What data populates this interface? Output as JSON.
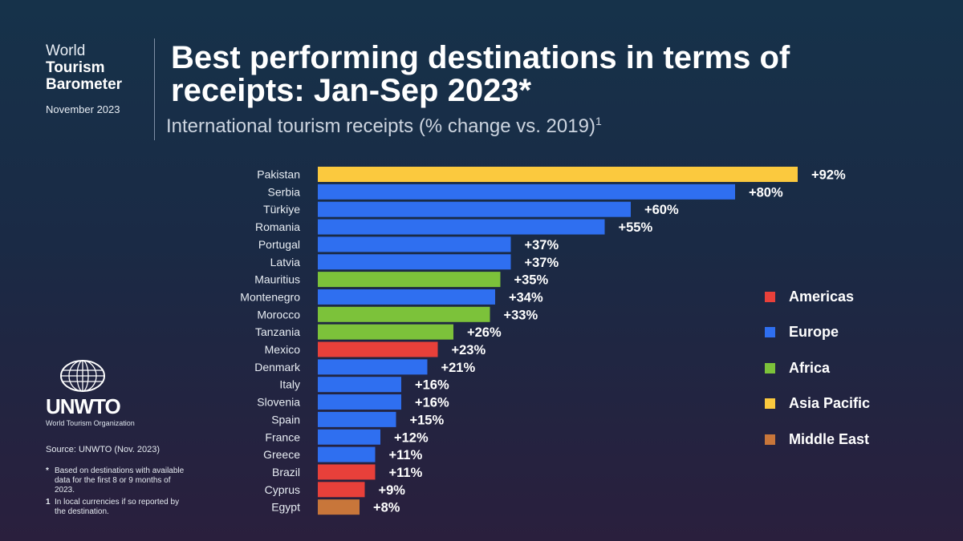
{
  "brand": {
    "line1": "World",
    "line2": "Tourism",
    "line3": "Barometer",
    "date": "November 2023"
  },
  "header": {
    "title": "Best performing destinations in terms of receipts: Jan-Sep 2023*",
    "subtitle": "International tourism receipts (% change vs. 2019)",
    "subtitle_mark": "1"
  },
  "logo": {
    "name": "UNWTO",
    "org": "World Tourism Organization"
  },
  "footer": {
    "source": "Source: UNWTO (Nov. 2023)",
    "note1_mark": "*",
    "note1": "Based on destinations with available data for the first 8 or 9 months of 2023.",
    "note2_mark": "1",
    "note2": "In local currencies if so reported by the destination."
  },
  "legend": [
    {
      "label": "Americas",
      "color": "#e8403a"
    },
    {
      "label": "Europe",
      "color": "#2f6ff0"
    },
    {
      "label": "Africa",
      "color": "#7cc23a"
    },
    {
      "label": "Asia Pacific",
      "color": "#fbc93e"
    },
    {
      "label": "Middle East",
      "color": "#c8763a"
    }
  ],
  "chart_data": {
    "type": "bar",
    "orientation": "horizontal",
    "title": "Best performing destinations in terms of receipts: Jan-Sep 2023*",
    "subtitle": "International tourism receipts (% change vs. 2019)",
    "categories": [
      "Pakistan",
      "Serbia",
      "Türkiye",
      "Romania",
      "Portugal",
      "Latvia",
      "Mauritius",
      "Montenegro",
      "Morocco",
      "Tanzania",
      "Mexico",
      "Denmark",
      "Italy",
      "Slovenia",
      "Spain",
      "France",
      "Greece",
      "Brazil",
      "Cyprus",
      "Egypt"
    ],
    "values": [
      92,
      80,
      60,
      55,
      37,
      37,
      35,
      34,
      33,
      26,
      23,
      21,
      16,
      16,
      15,
      12,
      11,
      11,
      9,
      8
    ],
    "labels": [
      "+92%",
      "+80%",
      "+60%",
      "+55%",
      "+37%",
      "+37%",
      "+35%",
      "+34%",
      "+33%",
      "+26%",
      "+23%",
      "+21%",
      "+16%",
      "+16%",
      "+15%",
      "+12%",
      "+11%",
      "+11%",
      "+9%",
      "+8%"
    ],
    "regions": [
      "Asia Pacific",
      "Europe",
      "Europe",
      "Europe",
      "Europe",
      "Europe",
      "Africa",
      "Europe",
      "Africa",
      "Africa",
      "Americas",
      "Europe",
      "Europe",
      "Europe",
      "Europe",
      "Europe",
      "Europe",
      "Americas",
      "Americas",
      "Middle East"
    ],
    "xlim": [
      0,
      92
    ],
    "grid": false,
    "legend_position": "right"
  }
}
